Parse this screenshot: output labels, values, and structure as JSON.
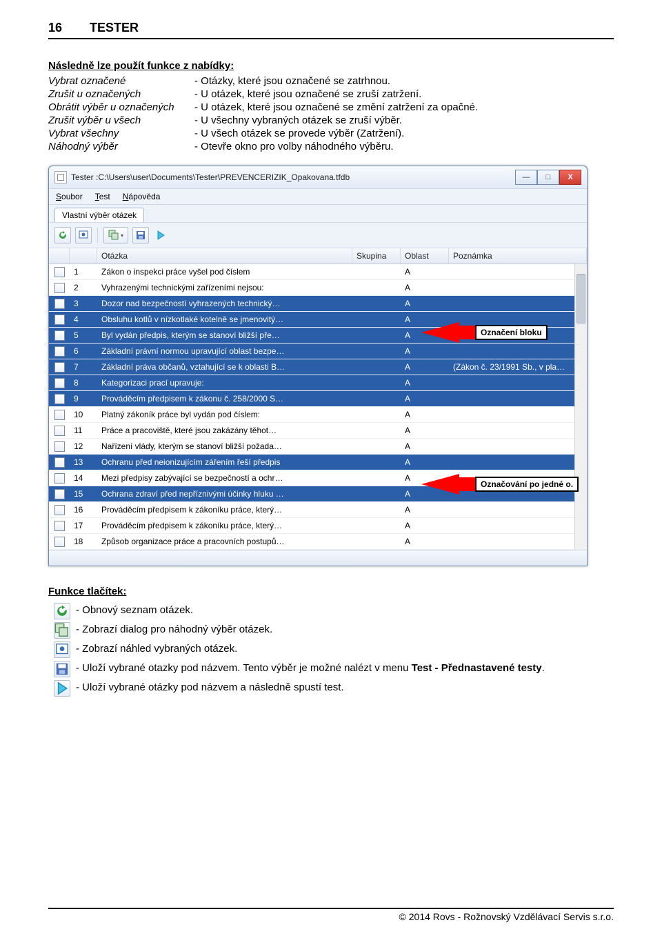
{
  "page": {
    "number": "16",
    "title": "TESTER"
  },
  "section1": {
    "heading": "Následně lze použít funkce z nabídky:",
    "rows": [
      {
        "left": "Vybrat označené",
        "right": "- Otázky, které jsou označené se zatrhnou."
      },
      {
        "left": "Zrušit u označených",
        "right": "- U otázek, které jsou označené se zruší zatržení."
      },
      {
        "left": "Obrátit výběr u označených",
        "right": "- U otázek, které jsou označené se změní zatržení za opačné."
      },
      {
        "left": "Zrušit výběr u všech",
        "right": "- U všechny vybraných otázek se zruší výběr."
      },
      {
        "left": "Vybrat všechny",
        "right": "- U všech otázek se provede výběr (Zatržení)."
      },
      {
        "left": "Náhodný výběr",
        "right": "- Otevře okno pro volby náhodného výběru."
      }
    ]
  },
  "app": {
    "title": "Tester :C:\\Users\\user\\Documents\\Tester\\PREVENCERIZIK_Opakovana.tfdb",
    "menu": {
      "file": "Soubor",
      "test": "Test",
      "help": "Nápověda"
    },
    "tab": "Vlastní výběr otázek",
    "columns": {
      "chk": "",
      "num": "",
      "q": "Otázka",
      "grp": "Skupina",
      "area": "Oblast",
      "note": "Poznámka"
    },
    "rows": [
      {
        "n": "1",
        "q": "Zákon o inspekci práce vyšel pod číslem",
        "g": "",
        "a": "A",
        "note": "",
        "sel": false
      },
      {
        "n": "2",
        "q": "Vyhrazenými technickými zařízeními nejsou:",
        "g": "",
        "a": "A",
        "note": "",
        "sel": false
      },
      {
        "n": "3",
        "q": "Dozor nad bezpečností vyhrazených technický…",
        "g": "",
        "a": "A",
        "note": "",
        "sel": true
      },
      {
        "n": "4",
        "q": "Obsluhu kotlů v nízkotlaké kotelně se jmenovitý…",
        "g": "",
        "a": "A",
        "note": "",
        "sel": true
      },
      {
        "n": "5",
        "q": "Byl vydán předpis, kterým se stanoví bližší pře…",
        "g": "",
        "a": "A",
        "note": "",
        "sel": true
      },
      {
        "n": "6",
        "q": "Základní právní normou upravující oblast bezpe…",
        "g": "",
        "a": "A",
        "note": "",
        "sel": true
      },
      {
        "n": "7",
        "q": "Základní práva občanů, vztahující se k oblasti B…",
        "g": "",
        "a": "A",
        "note": "(Zákon č. 23/1991 Sb., v pla…",
        "sel": true
      },
      {
        "n": "8",
        "q": "Kategorizaci prací upravuje:",
        "g": "",
        "a": "A",
        "note": "",
        "sel": true
      },
      {
        "n": "9",
        "q": "Prováděcím předpisem k zákonu č. 258/2000 S…",
        "g": "",
        "a": "A",
        "note": "",
        "sel": true
      },
      {
        "n": "10",
        "q": "Platný zákoník práce byl vydán pod číslem:",
        "g": "",
        "a": "A",
        "note": "",
        "sel": false
      },
      {
        "n": "11",
        "q": "Práce a pracoviště, které jsou zakázány těhot…",
        "g": "",
        "a": "A",
        "note": "",
        "sel": false
      },
      {
        "n": "12",
        "q": "Nařízení vlády, kterým se stanoví bližší požada…",
        "g": "",
        "a": "A",
        "note": "",
        "sel": false
      },
      {
        "n": "13",
        "q": "Ochranu před neionizujícím zářením řeší předpis",
        "g": "",
        "a": "A",
        "note": "",
        "sel": true
      },
      {
        "n": "14",
        "q": "Mezi předpisy zabývající se bezpečností a ochr…",
        "g": "",
        "a": "A",
        "note": "",
        "sel": false
      },
      {
        "n": "15",
        "q": "Ochrana zdraví před nepříznivými účinky hluku …",
        "g": "",
        "a": "A",
        "note": "",
        "sel": true
      },
      {
        "n": "16",
        "q": "Prováděcím předpisem k zákoníku práce, který…",
        "g": "",
        "a": "A",
        "note": "",
        "sel": false
      },
      {
        "n": "17",
        "q": "Prováděcím předpisem k zákoníku práce,  který…",
        "g": "",
        "a": "A",
        "note": "",
        "sel": false
      },
      {
        "n": "18",
        "q": "Způsob organizace práce a pracovních postupů…",
        "g": "",
        "a": "A",
        "note": "",
        "sel": false
      }
    ],
    "callouts": {
      "block": "Označení bloku",
      "single": "Označování po jedné o."
    },
    "colors": {
      "selected_bg": "#2b5ea8",
      "selected_fg": "#ffffff",
      "arrow": "#ff0000",
      "window_border": "#6b8ab0"
    }
  },
  "section2": {
    "heading": "Funkce tlačítek:",
    "items": [
      {
        "icon": "refresh",
        "text": "- Obnový seznam otázek."
      },
      {
        "icon": "random",
        "text": "- Zobrazí dialog pro náhodný výběr otázek."
      },
      {
        "icon": "preview",
        "text": "- Zobrazí náhled vybraných otázek."
      },
      {
        "icon": "save",
        "text": "- Uloží vybrané otazky pod názvem. Tento výběr je možné nalézt v menu Test - Přednastavené testy."
      },
      {
        "icon": "play",
        "text": "- Uloží vybrané otázky pod názvem a následně spustí test."
      }
    ]
  },
  "footer": "© 2014 Rovs - Rožnovský Vzdělávací Servis s.r.o."
}
